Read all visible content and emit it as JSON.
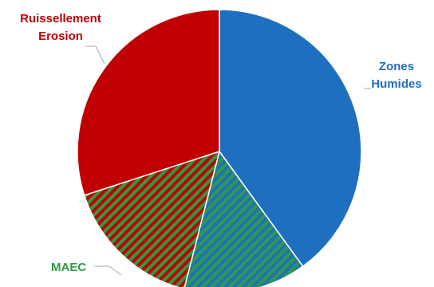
{
  "chart_data": {
    "type": "pie",
    "title": "",
    "slices": [
      {
        "label_lines": [
          "Zones",
          "Humides"
        ],
        "value": 40,
        "color": "#1f6fc0",
        "pattern": "none",
        "stripe_color": "",
        "label_color": "#1f6fc0"
      },
      {
        "label_lines": [],
        "value": 14,
        "color": "#1f6fc0",
        "pattern": "diagonal-stripes",
        "stripe_color": "#2e9a45",
        "label_color": ""
      },
      {
        "label_lines": [
          "MAEC"
        ],
        "value": 16,
        "color": "#c00000",
        "pattern": "diagonal-stripes",
        "stripe_color": "#2e9a45",
        "label_color": "#2e9a45"
      },
      {
        "label_lines": [
          "Ruissellement",
          "Erosion"
        ],
        "value": 30,
        "color": "#c00000",
        "pattern": "none",
        "stripe_color": "",
        "label_color": "#c00000"
      }
    ],
    "start_angle_deg": 0,
    "direction": "clockwise",
    "legend": "none"
  }
}
